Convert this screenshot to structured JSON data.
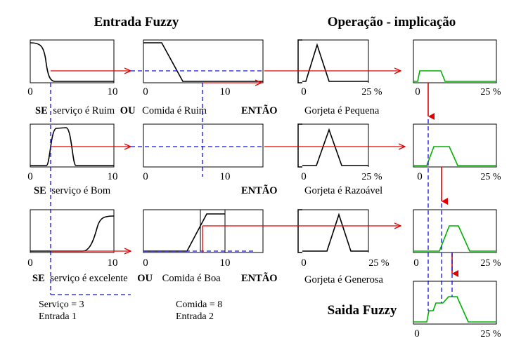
{
  "titles": {
    "input": "Entrada Fuzzy",
    "operation": "Operação - implicação",
    "output": "Saida Fuzzy"
  },
  "axis": {
    "zero": "0",
    "ten": "10",
    "pct": "25 %"
  },
  "rules": [
    {
      "if": "SE",
      "service": "serviço é Ruim",
      "op": "OU",
      "food": "Comida é Ruim",
      "then": "ENTÃO",
      "tip": "Gorjeta é Pequena"
    },
    {
      "if": "SE",
      "service": "serviço é Bom",
      "op": "",
      "food": "",
      "then": "ENTÃO",
      "tip": "Gorjeta é Razoável"
    },
    {
      "if": "SE",
      "service": "serviço é excelente",
      "op": "OU",
      "food": "Comida é Boa",
      "then": "ENTÃO",
      "tip": "Gorjeta é Generosa"
    }
  ],
  "inputs": {
    "service_value": "Serviço =  3",
    "service_label": "Entrada 1",
    "food_value": "Comida  = 8",
    "food_label": "Entrada 2"
  },
  "colors": {
    "implication_arrow": "#e00000",
    "input_marker": "#1010e0",
    "clipped_output": "#00b000",
    "membership": "#000000"
  }
}
